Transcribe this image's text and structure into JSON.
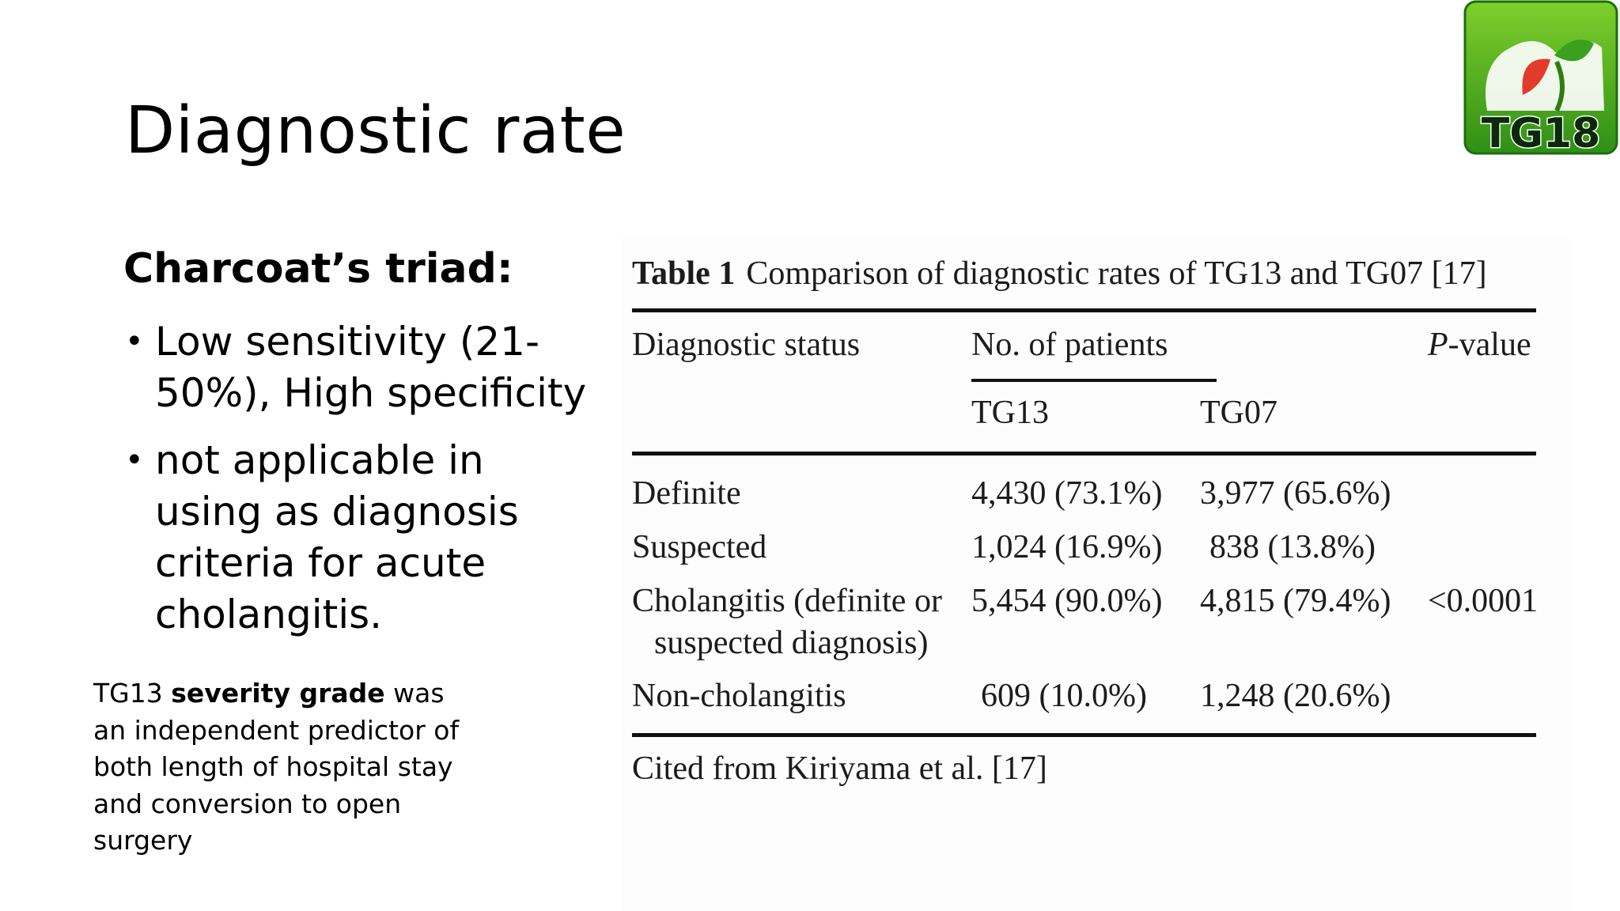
{
  "slide": {
    "title": "Diagnostic rate",
    "logo_text": "TG18",
    "left": {
      "heading": "Charcoat’s triad:",
      "bullets": [
        "Low sensitivity (21-50%), High specificity",
        "not applicable in using as diagnosis criteria for acute cholangitis."
      ],
      "note": {
        "part1": "TG13 ",
        "bold": "severity grade",
        "part2": " was an independent predictor of both length of hospital stay and conversion to open surgery"
      }
    }
  },
  "table": {
    "caption_label": "Table 1",
    "caption_text": "Comparison of diagnostic rates of TG13 and TG07 [17]",
    "headers": {
      "status": "Diagnostic status",
      "patients": "No. of patients",
      "pvalue_italic": "P",
      "pvalue_rest": "-value",
      "tg13": "TG13",
      "tg07": "TG07"
    },
    "rows": [
      {
        "status": "Definite",
        "tg13": "4,430 (73.1%)",
        "tg07": "3,977 (65.6%)",
        "p": ""
      },
      {
        "status": "Suspected",
        "tg13": "1,024 (16.9%)",
        "tg07": "838 (13.8%)",
        "p": ""
      },
      {
        "status": "Cholangitis (definite or",
        "status2": "suspected diagnosis)",
        "tg13": "5,454 (90.0%)",
        "tg07": "4,815 (79.4%)",
        "p": "<0.0001"
      },
      {
        "status": "Non-cholangitis",
        "tg13": "609 (10.0%)",
        "tg07": "1,248 (20.6%)",
        "p": ""
      }
    ],
    "footer": "Cited from Kiriyama et al. [17]"
  },
  "colors": {
    "logo_green": "#3aa01e",
    "logo_light": "#a6e04a"
  }
}
